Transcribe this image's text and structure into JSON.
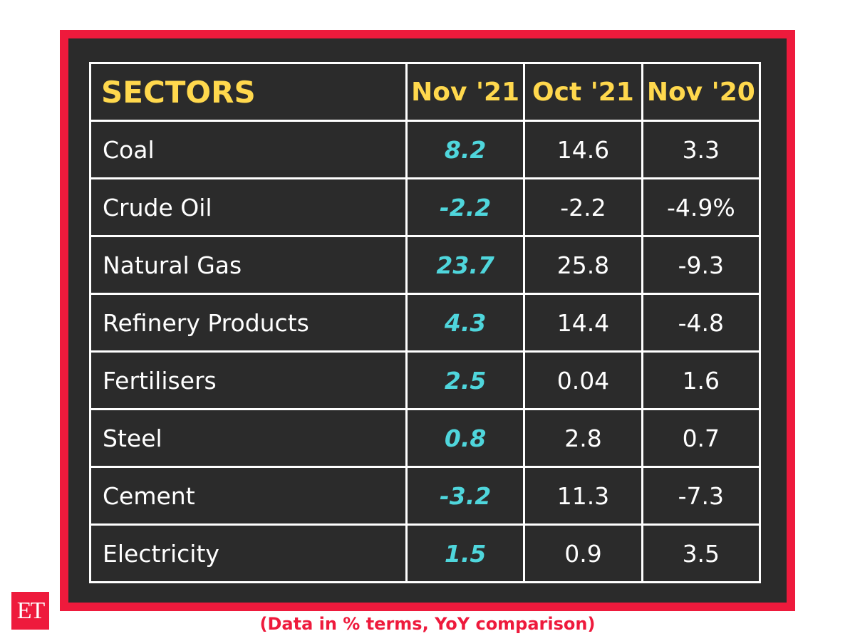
{
  "chart_data": {
    "type": "table",
    "columns": [
      "SECTORS",
      "Nov '21",
      "Oct '21",
      "Nov '20"
    ],
    "rows": [
      {
        "sector": "Coal",
        "values": [
          "8.2",
          "14.6",
          "3.3"
        ]
      },
      {
        "sector": "Crude Oil",
        "values": [
          "-2.2",
          "-2.2",
          "-4.9%"
        ]
      },
      {
        "sector": "Natural Gas",
        "values": [
          "23.7",
          "25.8",
          "-9.3"
        ]
      },
      {
        "sector": "Refinery Products",
        "values": [
          "4.3",
          "14.4",
          "-4.8"
        ]
      },
      {
        "sector": "Fertilisers",
        "values": [
          "2.5",
          "0.04",
          "1.6"
        ]
      },
      {
        "sector": "Steel",
        "values": [
          "0.8",
          "2.8",
          "0.7"
        ]
      },
      {
        "sector": "Cement",
        "values": [
          "-3.2",
          "11.3",
          "-7.3"
        ]
      },
      {
        "sector": "Electricity",
        "values": [
          "1.5",
          "0.9",
          "3.5"
        ]
      }
    ],
    "note": "(Data in % terms, YoY comparison)",
    "colors": {
      "frame": "#ee1a3c",
      "background": "#2b2b2b",
      "header": "#ffd84d",
      "highlight_column": "#4fd6dc",
      "text": "#ffffff"
    }
  },
  "logo": "ET"
}
